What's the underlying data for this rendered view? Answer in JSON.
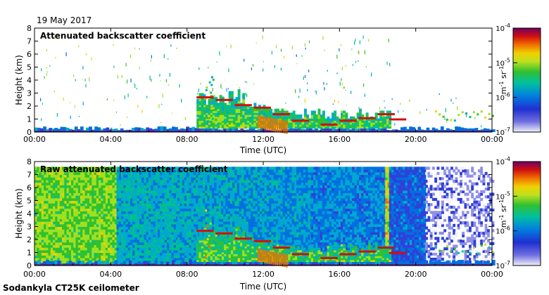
{
  "date": "19 May 2017",
  "footer": "Sodankyla CT25K ceilometer",
  "chart_data": [
    {
      "type": "heatmap",
      "title": "Attenuated backscatter coefficient",
      "xlabel": "Time (UTC)",
      "ylabel": "Height (km)",
      "x_ticks": [
        "00:00",
        "04:00",
        "08:00",
        "12:00",
        "16:00",
        "20:00",
        "00:00"
      ],
      "x_range_hours": [
        0,
        24
      ],
      "y_ticks": [
        0,
        1,
        2,
        3,
        4,
        5,
        6,
        7,
        8
      ],
      "ylim": [
        0,
        8
      ],
      "colorbar": {
        "scale": "log",
        "range": [
          1e-07,
          0.0001
        ],
        "tick_labels": [
          "10-4",
          "10-5",
          "10-6",
          "10-7"
        ],
        "units": "m-1 sr-1"
      },
      "features": {
        "cloud_base_track_km": [
          [
            8.5,
            2.7
          ],
          [
            9.5,
            2.5
          ],
          [
            10.5,
            2.1
          ],
          [
            11.5,
            1.9
          ],
          [
            12.5,
            1.4
          ],
          [
            13.5,
            0.9
          ],
          [
            15,
            0.6
          ],
          [
            16,
            0.9
          ],
          [
            17,
            1.1
          ],
          [
            18,
            1.4
          ],
          [
            18.6,
            1.0
          ]
        ],
        "noise_level": "low"
      }
    },
    {
      "type": "heatmap",
      "title": "Raw attenuated backscatter coefficient",
      "xlabel": "Time (UTC)",
      "ylabel": "Height (km)",
      "x_ticks": [
        "00:00",
        "04:00",
        "08:00",
        "12:00",
        "16:00",
        "20:00",
        "00:00"
      ],
      "x_range_hours": [
        0,
        24
      ],
      "y_ticks": [
        0,
        1,
        2,
        3,
        4,
        5,
        6,
        7,
        8
      ],
      "ylim": [
        0,
        8
      ],
      "colorbar": {
        "scale": "log",
        "range": [
          1e-07,
          0.0001
        ],
        "tick_labels": [
          "10-4",
          "10-5",
          "10-6",
          "10-7"
        ],
        "units": "m-1 sr-1"
      },
      "features": {
        "cloud_base_track_km": [
          [
            8.5,
            2.7
          ],
          [
            9.5,
            2.5
          ],
          [
            10.5,
            2.1
          ],
          [
            11.5,
            1.9
          ],
          [
            12.5,
            1.4
          ],
          [
            13.5,
            0.9
          ],
          [
            15,
            0.6
          ],
          [
            16,
            0.9
          ],
          [
            17,
            1.1
          ],
          [
            18,
            1.4
          ],
          [
            18.6,
            1.0
          ]
        ],
        "noise_level": "high"
      }
    }
  ]
}
